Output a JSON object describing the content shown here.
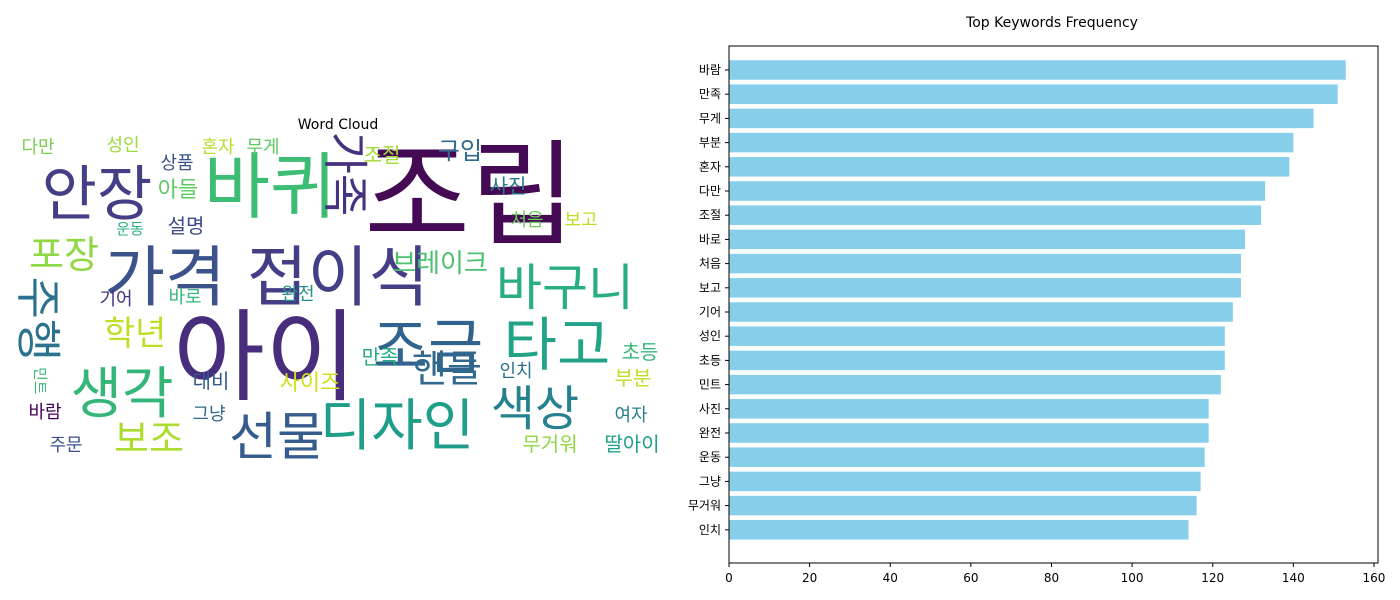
{
  "chart_data": [
    {
      "type": "wordcloud",
      "title": "Word Cloud",
      "words": [
        {
          "text": "조립",
          "color": "#440a54"
        },
        {
          "text": "아이",
          "color": "#472d7b"
        },
        {
          "text": "바퀴",
          "color": "#3dbc74"
        },
        {
          "text": "안장",
          "color": "#433e85"
        },
        {
          "text": "가격",
          "color": "#3b528b"
        },
        {
          "text": "접이식",
          "color": "#433e85"
        },
        {
          "text": "조금",
          "color": "#30648e"
        },
        {
          "text": "디자인",
          "color": "#1f9e89"
        },
        {
          "text": "생각",
          "color": "#34b679"
        },
        {
          "text": "타고",
          "color": "#20a386"
        },
        {
          "text": "선물",
          "color": "#365c8d"
        },
        {
          "text": "색상",
          "color": "#26828e"
        },
        {
          "text": "바구니",
          "color": "#29af7f"
        },
        {
          "text": "가족",
          "color": "#46327e"
        },
        {
          "text": "아들",
          "color": "#5ec962"
        },
        {
          "text": "포장",
          "color": "#8fd744"
        },
        {
          "text": "학년",
          "color": "#bddf26"
        },
        {
          "text": "핸들",
          "color": "#31688e"
        },
        {
          "text": "보조",
          "color": "#addc30"
        },
        {
          "text": "주행",
          "color": "#2c728e"
        },
        {
          "text": "구입",
          "color": "#31688e"
        },
        {
          "text": "브레이크",
          "color": "#4ac16d"
        },
        {
          "text": "혼자",
          "color": "#b5de2b"
        },
        {
          "text": "무게",
          "color": "#5ec962"
        },
        {
          "text": "상품",
          "color": "#3b528b"
        },
        {
          "text": "다만",
          "color": "#7ad151"
        },
        {
          "text": "성인",
          "color": "#9bd93c"
        },
        {
          "text": "조절",
          "color": "#a2da37"
        },
        {
          "text": "사진",
          "color": "#2a788e"
        },
        {
          "text": "처음",
          "color": "#6ccd5a"
        },
        {
          "text": "보고",
          "color": "#bddf26"
        },
        {
          "text": "설명",
          "color": "#3e4989"
        },
        {
          "text": "운동",
          "color": "#29af7f"
        },
        {
          "text": "기어",
          "color": "#46337f"
        },
        {
          "text": "바로",
          "color": "#35b779"
        },
        {
          "text": "완전",
          "color": "#21918c"
        },
        {
          "text": "사이즈",
          "color": "#d0e11c"
        },
        {
          "text": "만족",
          "color": "#25ab82"
        },
        {
          "text": "대비",
          "color": "#365c8d"
        },
        {
          "text": "인치",
          "color": "#2e6f8e"
        },
        {
          "text": "초등",
          "color": "#35b779"
        },
        {
          "text": "부분",
          "color": "#bddf26"
        },
        {
          "text": "민트",
          "color": "#3fbc73"
        },
        {
          "text": "바람",
          "color": "#440154"
        },
        {
          "text": "그냥",
          "color": "#31688e"
        },
        {
          "text": "여자",
          "color": "#277f8e"
        },
        {
          "text": "주문",
          "color": "#3b528b"
        },
        {
          "text": "무거워",
          "color": "#8fd744"
        },
        {
          "text": "딸아이",
          "color": "#1fa187"
        }
      ]
    },
    {
      "type": "bar",
      "orientation": "horizontal",
      "title": "Top Keywords Frequency",
      "color": "#87ceeb",
      "categories": [
        "바람",
        "만족",
        "무게",
        "부분",
        "혼자",
        "다만",
        "조절",
        "바로",
        "처음",
        "보고",
        "기어",
        "성인",
        "초등",
        "민트",
        "사진",
        "완전",
        "운동",
        "그냥",
        "무거워",
        "인치"
      ],
      "values": [
        153,
        151,
        145,
        140,
        139,
        133,
        132,
        128,
        127,
        127,
        125,
        123,
        123,
        122,
        119,
        119,
        118,
        117,
        116,
        114
      ],
      "xlim": [
        0,
        161
      ],
      "xticks": [
        0,
        20,
        40,
        60,
        80,
        100,
        120,
        140,
        160
      ],
      "xlabel": "",
      "ylabel": ""
    }
  ]
}
